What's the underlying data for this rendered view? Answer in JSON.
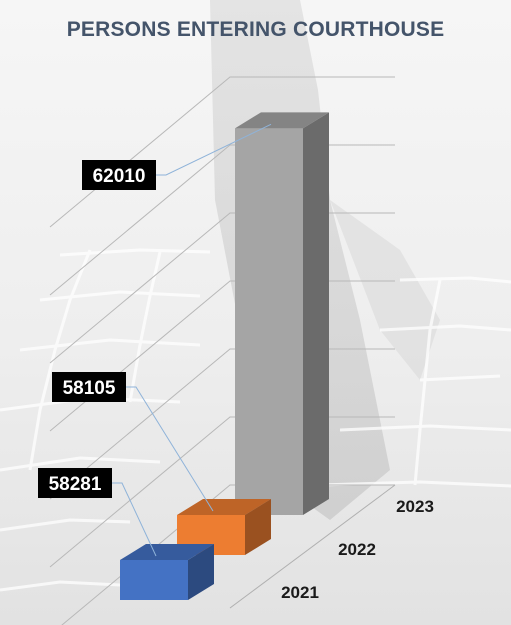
{
  "chart_data": {
    "type": "bar",
    "title": "PERSONS ENTERING COURTHOUSE",
    "categories": [
      "2021",
      "2022",
      "2023"
    ],
    "values": [
      58281,
      58105,
      62010
    ],
    "data_labels": [
      "58281",
      "58105",
      "62010"
    ],
    "colors": [
      "#4472c4",
      "#ed7d31",
      "#a5a5a5"
    ],
    "style": "3d-columns",
    "grid": true
  }
}
